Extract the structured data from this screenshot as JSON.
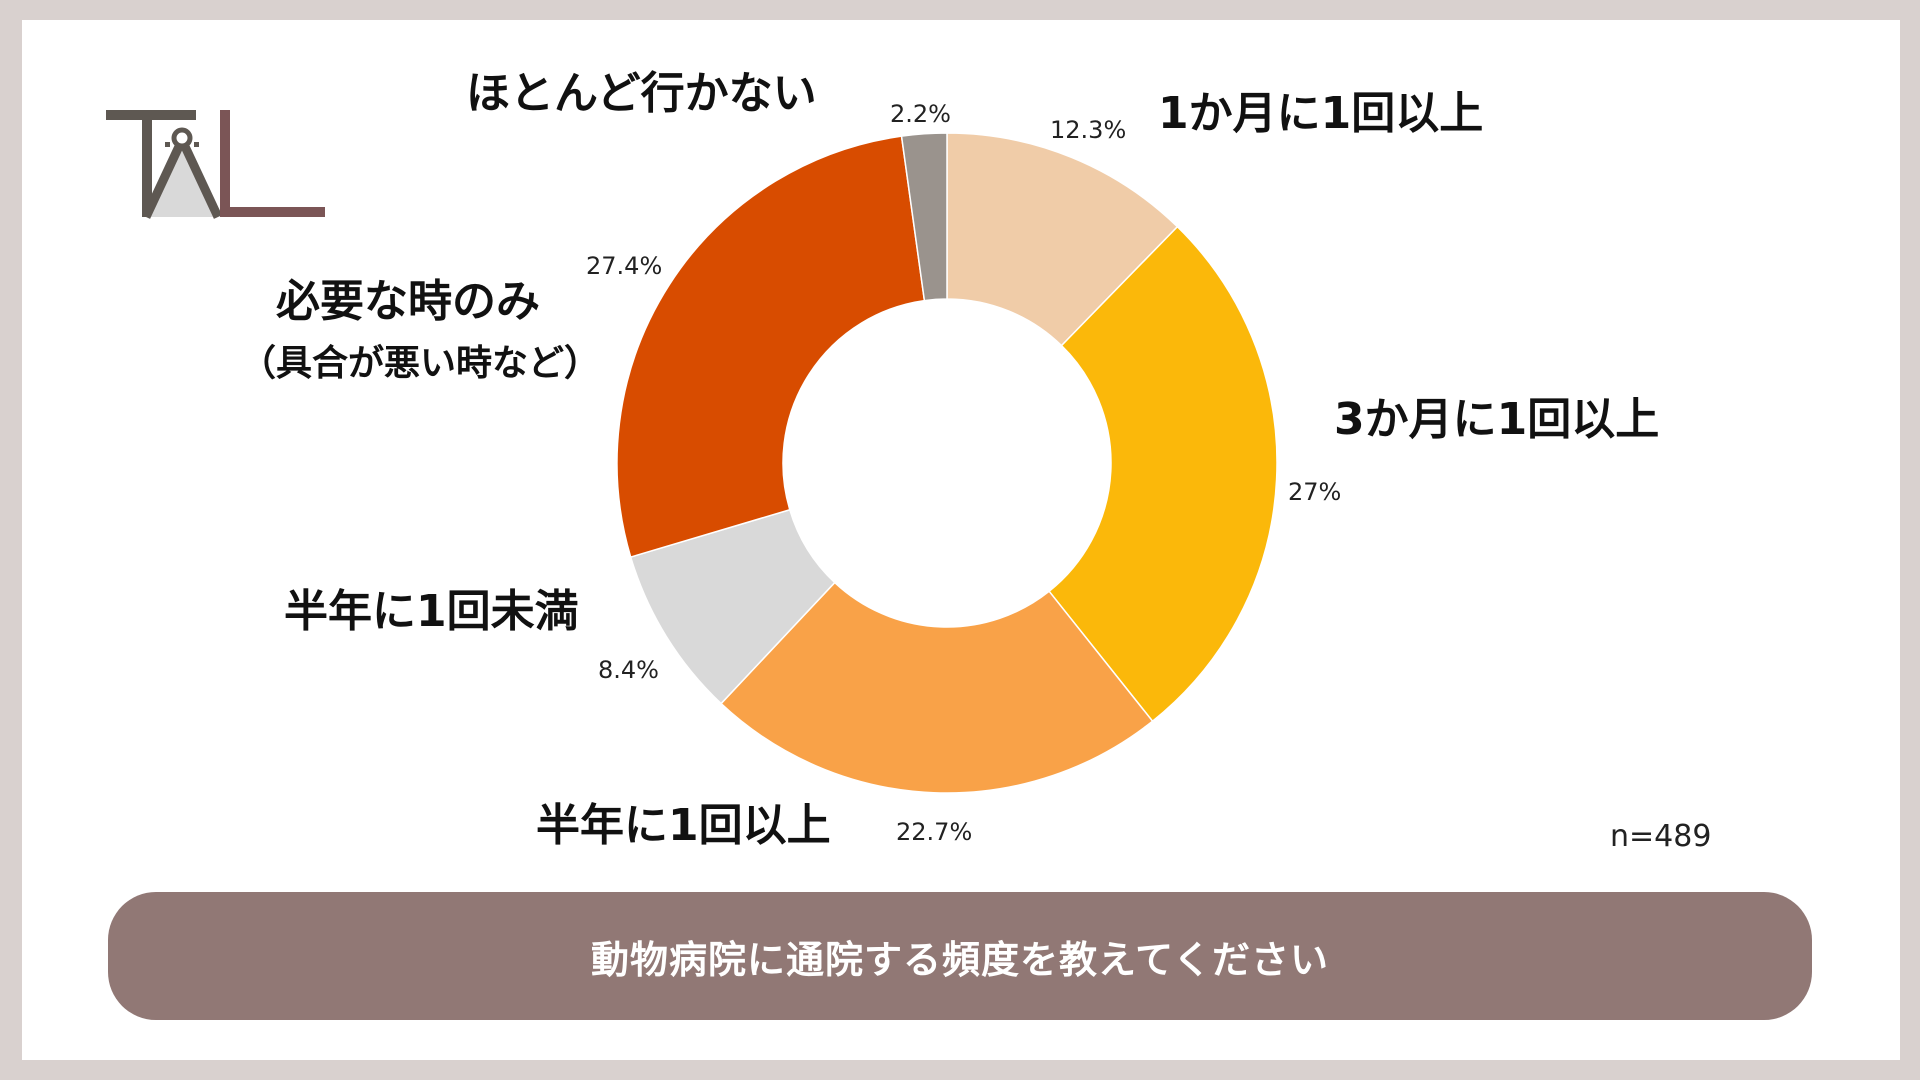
{
  "logo": {
    "text": "TAL",
    "color_dark": "#5e5852",
    "color_accent": "#7b5556",
    "color_light": "#d9d9d9"
  },
  "labels": {
    "q1": "ほとんど行かない",
    "q2": "1か月に1回以上",
    "q3": "3か月に1回以上",
    "q4": "必要な時のみ",
    "q4_sub": "（具合が悪い時など）",
    "q5": "半年に1回未満",
    "q6": "半年に1回以上"
  },
  "percents": {
    "p1": "2.2%",
    "p2": "12.3%",
    "p3": "27%",
    "p4": "27.4%",
    "p5": "8.4%",
    "p6": "22.7%"
  },
  "sample_size": "n=489",
  "question": "動物病院に通院する頻度を教えてください",
  "chart_data": {
    "type": "pie",
    "donut": true,
    "categories": [
      "1か月に1回以上",
      "3か月に1回以上",
      "半年に1回以上",
      "半年に1回未満",
      "必要な時のみ（具合が悪い時など）",
      "ほとんど行かない"
    ],
    "values": [
      12.3,
      27.0,
      22.7,
      8.4,
      27.4,
      2.2
    ],
    "colors": [
      "#f0cca8",
      "#fbb80a",
      "#f9a248",
      "#d9d9d9",
      "#d84c00",
      "#9a938d"
    ],
    "unit": "%",
    "start_angle": "12 o'clock, clockwise",
    "sample_size": "n=489",
    "title": "動物病院に通院する頻度を教えてください"
  }
}
